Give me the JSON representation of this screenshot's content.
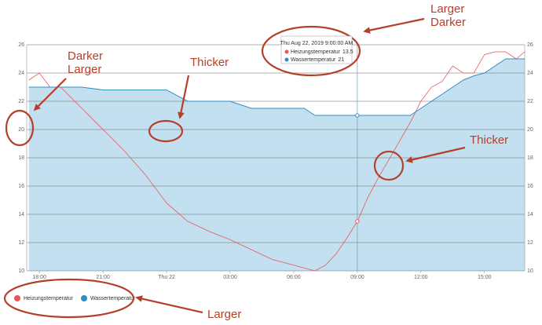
{
  "chart_data": {
    "type": "line",
    "x": [
      17.5,
      18,
      18.5,
      19,
      20,
      21,
      22,
      23,
      24,
      25,
      26,
      27,
      28,
      29,
      30,
      30.5,
      31,
      31.5,
      32,
      32.5,
      33,
      33.5,
      34,
      34.5,
      35,
      35.5,
      36,
      36.5,
      37,
      37.5,
      38,
      38.5,
      39,
      39.5,
      40,
      40.5,
      40.9
    ],
    "series": [
      {
        "name": "Heizungstemperatur",
        "color": "#e8585a",
        "values": [
          23.5,
          24,
          23,
          23,
          21.5,
          20,
          18.5,
          16.8,
          14.8,
          13.5,
          12.8,
          12.2,
          11.5,
          10.8,
          10.4,
          10.2,
          10,
          10.4,
          11.2,
          12.3,
          13.5,
          15.2,
          16.6,
          17.9,
          19.2,
          20.5,
          22,
          23,
          23.4,
          24.5,
          24,
          24,
          25.3,
          25.5,
          25.5,
          25,
          25.5
        ]
      },
      {
        "name": "Wassertemperatur",
        "color": "#2f8fc4",
        "area": true,
        "area_color": "#c3e0f0",
        "values": [
          23,
          23,
          23,
          23,
          23,
          22.8,
          22.8,
          22.8,
          22.8,
          22,
          22,
          22,
          21.5,
          21.5,
          21.5,
          21.5,
          21,
          21,
          21,
          21,
          21,
          21,
          21,
          21,
          21,
          21,
          21.5,
          22,
          22.5,
          23,
          23.5,
          23.8,
          24,
          24.5,
          25,
          25,
          25
        ]
      }
    ],
    "xlim": [
      17.4,
      40.9
    ],
    "xticks": [
      {
        "value": 18,
        "label": "18:00"
      },
      {
        "value": 21,
        "label": "21:00"
      },
      {
        "value": 24,
        "label": "Thu 22"
      },
      {
        "value": 27,
        "label": "03:00"
      },
      {
        "value": 30,
        "label": "06:00"
      },
      {
        "value": 33,
        "label": "09:00"
      },
      {
        "value": 36,
        "label": "12:00"
      },
      {
        "value": 39,
        "label": "15:00"
      }
    ],
    "ylim": [
      10,
      26
    ],
    "yticks": [
      10,
      12,
      14,
      16,
      18,
      20,
      22,
      24,
      26
    ],
    "grid": true,
    "tooltip": {
      "x": 33,
      "title": "Thu Aug 22, 2019 9:00:00 AM",
      "items": [
        {
          "name": "Heizungstemperatur",
          "value": 13.5
        },
        {
          "name": "Wassertemperatur",
          "value": 21
        }
      ]
    }
  },
  "annotations": [
    {
      "lines": [
        "Larger",
        "Darker"
      ]
    },
    {
      "lines": [
        "Darker",
        "Larger"
      ]
    },
    {
      "lines": [
        "Thicker"
      ]
    },
    {
      "lines": [
        "Thicker"
      ]
    },
    {
      "lines": [
        "Larger"
      ]
    }
  ]
}
